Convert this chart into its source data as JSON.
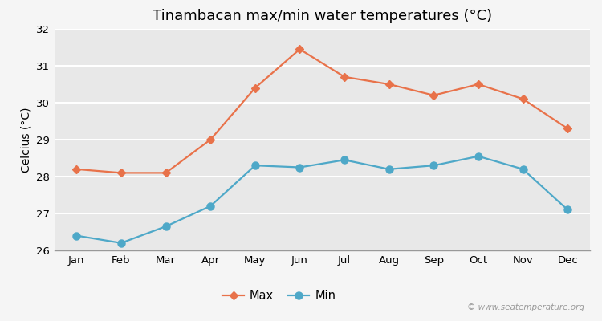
{
  "title": "Tinambacan max/min water temperatures (°C)",
  "ylabel": "Celcius (°C)",
  "months": [
    "Jan",
    "Feb",
    "Mar",
    "Apr",
    "May",
    "Jun",
    "Jul",
    "Aug",
    "Sep",
    "Oct",
    "Nov",
    "Dec"
  ],
  "max_temps": [
    28.2,
    28.1,
    28.1,
    29.0,
    30.4,
    31.45,
    30.7,
    30.5,
    30.2,
    30.5,
    30.1,
    29.3
  ],
  "min_temps": [
    26.4,
    26.2,
    26.65,
    27.2,
    28.3,
    28.25,
    28.45,
    28.2,
    28.3,
    28.55,
    28.2,
    27.1
  ],
  "max_color": "#e8724a",
  "min_color": "#4ea8c8",
  "fig_bg_color": "#f5f5f5",
  "plot_bg_color": "#e8e8e8",
  "ylim": [
    26,
    32
  ],
  "yticks": [
    26,
    27,
    28,
    29,
    30,
    31,
    32
  ],
  "grid_color": "#ffffff",
  "watermark": "© www.seatemperature.org",
  "title_fontsize": 13,
  "axis_label_fontsize": 10,
  "tick_fontsize": 9.5,
  "legend_labels": [
    "Max",
    "Min"
  ]
}
